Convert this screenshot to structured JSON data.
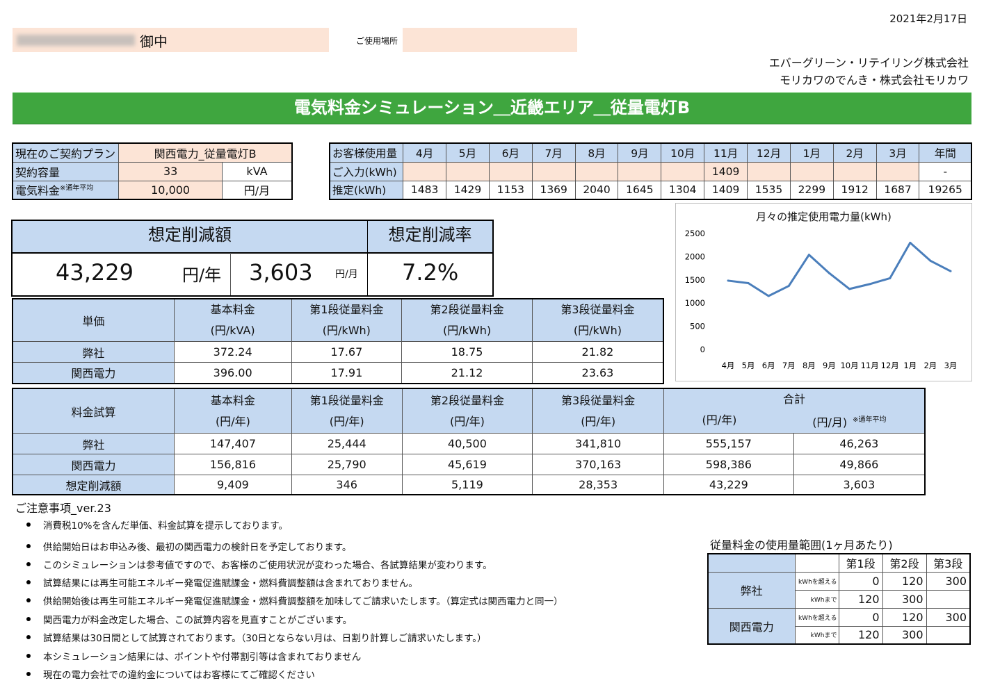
{
  "header": {
    "date": "2021年2月17日",
    "customer_suffix": "御中",
    "place_label": "ご使用場所",
    "company_line1": "エバーグリーン・リテイリング株式会社",
    "company_line2": "モリカワのでんき・株式会社モリカワ"
  },
  "title": "電気料金シミュレーション＿近畿エリア＿従量電灯B",
  "plan": {
    "plan_label": "現在のご契約プラン",
    "plan_value": "関西電力_従量電灯B",
    "capacity_label": "契約容量",
    "capacity_value": "33",
    "capacity_unit": "kVA",
    "fee_label": "電気料金",
    "fee_note": "※通年平均",
    "fee_value": "10,000",
    "fee_unit": "円/月"
  },
  "usage": {
    "header_label": "お客様使用量",
    "months": [
      "4月",
      "5月",
      "6月",
      "7月",
      "8月",
      "9月",
      "10月",
      "11月",
      "12月",
      "1月",
      "2月",
      "3月"
    ],
    "annual_label": "年間",
    "input_label": "ご入力(kWh)",
    "input_values": [
      "",
      "",
      "",
      "",
      "",
      "",
      "",
      "1409",
      "",
      "",
      "",
      ""
    ],
    "input_annual": "-",
    "estimate_label": "推定(kWh)",
    "estimate_values": [
      "1483",
      "1429",
      "1153",
      "1369",
      "2040",
      "1645",
      "1304",
      "1409",
      "1535",
      "2299",
      "1912",
      "1687"
    ],
    "estimate_annual": "19265"
  },
  "saving": {
    "amount_title": "想定削減額",
    "rate_title": "想定削減率",
    "yearly": "43,229",
    "yearly_unit": "円/年",
    "monthly": "3,603",
    "monthly_unit": "円/月",
    "rate": "7.2%"
  },
  "tanka": {
    "title": "単価",
    "headers": [
      {
        "l1": "基本料金",
        "l2": "(円/kVA)"
      },
      {
        "l1": "第1段従量料金",
        "l2": "(円/kWh)"
      },
      {
        "l1": "第2段従量料金",
        "l2": "(円/kWh)"
      },
      {
        "l1": "第3段従量料金",
        "l2": "(円/kWh)"
      }
    ],
    "rows": [
      {
        "name": "弊社",
        "values": [
          "372.24",
          "17.67",
          "18.75",
          "21.82"
        ]
      },
      {
        "name": "関西電力",
        "values": [
          "396.00",
          "17.91",
          "21.12",
          "23.63"
        ]
      }
    ]
  },
  "shisan": {
    "title": "料金試算",
    "headers": [
      {
        "l1": "基本料金",
        "l2": "(円/年)"
      },
      {
        "l1": "第1段従量料金",
        "l2": "(円/年)"
      },
      {
        "l1": "第2段従量料金",
        "l2": "(円/年)"
      },
      {
        "l1": "第3段従量料金",
        "l2": "(円/年)"
      }
    ],
    "total_label": "合計",
    "total_year_unit": "(円/年)",
    "total_month_unit": "(円/月)",
    "total_note": "※通年平均",
    "rows": [
      {
        "name": "弊社",
        "values": [
          "147,407",
          "25,444",
          "40,500",
          "341,810",
          "555,157",
          "46,263"
        ]
      },
      {
        "name": "関西電力",
        "values": [
          "156,816",
          "25,790",
          "45,619",
          "370,163",
          "598,386",
          "49,866"
        ]
      },
      {
        "name": "想定削減額",
        "values": [
          "9,409",
          "346",
          "5,119",
          "28,353",
          "43,229",
          "3,603"
        ]
      }
    ]
  },
  "chart_data": {
    "type": "line",
    "title": "月々の推定使用電力量(kWh)",
    "categories": [
      "4月",
      "5月",
      "6月",
      "7月",
      "8月",
      "9月",
      "10月",
      "11月",
      "12月",
      "1月",
      "2月",
      "3月"
    ],
    "values": [
      1483,
      1429,
      1153,
      1369,
      2040,
      1645,
      1304,
      1409,
      1535,
      2299,
      1912,
      1687
    ],
    "ylim": [
      0,
      2500
    ],
    "yticks": [
      "0",
      "500",
      "1000",
      "1500",
      "2000",
      "2500"
    ],
    "line_color": "#4a7ebb",
    "grid": false,
    "legend": "none"
  },
  "notes": {
    "title": "ご注意事項_ver.23",
    "items": [
      "消費税10%を含んだ単価、料金試算を提示しております。",
      "供給開始日はお申込み後、最初の関西電力の検針日を予定しております。",
      "このシミュレーションは参考値ですので、お客様のご使用状況が変わった場合、各試算結果が変わります。",
      "試算結果には再生可能エネルギー発電促進賦課金・燃料費調整額は含まれておりません。",
      "供給開始後は再生可能エネルギー発電促進賦課金・燃料費調整額を加味してご請求いたします。（算定式は関西電力と同一）",
      "関西電力が料金改定した場合、この試算内容を見直すことがございます。",
      "試算結果は30日間として試算されております。（30日とならない月は、日割り計算しご請求いたします。）",
      "本シミュレーション結果には、ポイントや付帯割引等は含まれておりません",
      "現在の電力会社での違約金についてはお客様にてご確認ください"
    ]
  },
  "range": {
    "title": "従量料金の使用量範囲(1ヶ月あたり)",
    "headers": [
      "第1段",
      "第2段",
      "第3段"
    ],
    "over_label": "kWhを超える",
    "upto_label": "kWhまで",
    "rows": [
      {
        "name": "弊社",
        "over": [
          "0",
          "120",
          "300"
        ],
        "upto": [
          "120",
          "300",
          ""
        ]
      },
      {
        "name": "関西電力",
        "over": [
          "0",
          "120",
          "300"
        ],
        "upto": [
          "120",
          "300",
          ""
        ]
      }
    ]
  }
}
